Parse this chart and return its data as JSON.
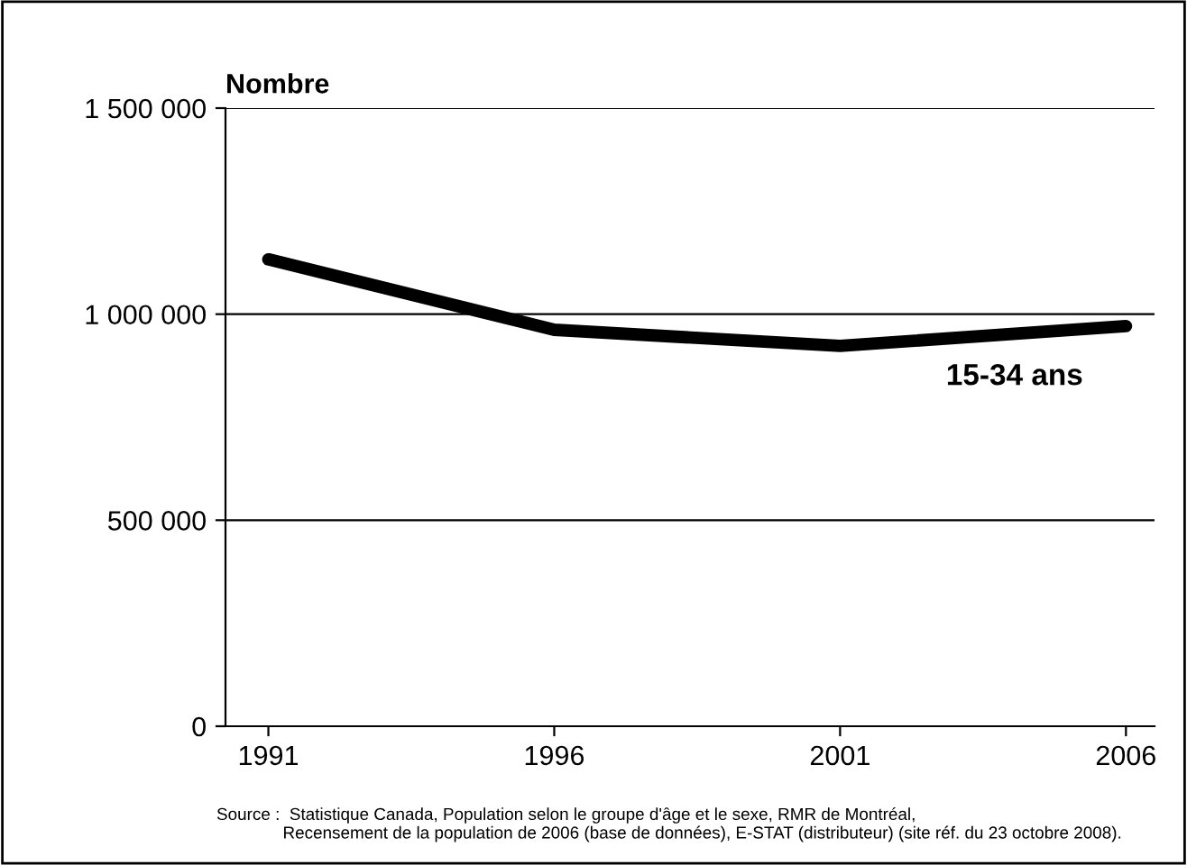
{
  "chart_data": {
    "type": "line",
    "ylabel": "Nombre",
    "categories": [
      "1991",
      "1996",
      "2001",
      "2006"
    ],
    "series": [
      {
        "name": "15-34 ans",
        "color": "#000000",
        "values": [
          1133000,
          962000,
          923000,
          971000
        ]
      }
    ],
    "ylim": [
      0,
      1500000
    ],
    "yticks": [
      0,
      {
        "value": 500000,
        "label": "500 000"
      },
      {
        "value": 1000000,
        "label": "1 000 000"
      },
      {
        "value": 1500000,
        "label": "1 500 000"
      }
    ],
    "grid": "y",
    "legend": false,
    "marker": "none",
    "line_style": "solid",
    "annotations": [
      "Source :  Statistique Canada, Population selon le groupe d'âge et le sexe, RMR de Montréal,\n              Recensement de la population de 2006 (base de données), E-STAT (distributeur) (site réf. du 23 octobre 2008)."
    ]
  }
}
